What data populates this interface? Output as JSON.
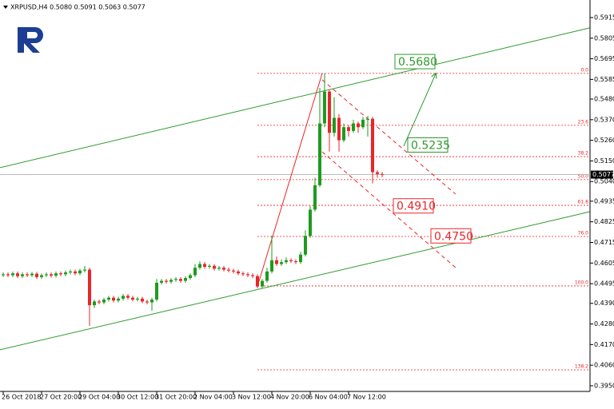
{
  "chart_data": {
    "type": "candlestick",
    "title": "XRPUSD,H4  0.5080 0.5091 0.5063 0.5077",
    "up_color": "#1e9b1e",
    "down_color": "#e8262a",
    "categories": [
      "26 Oct 2018",
      null,
      null,
      null,
      null,
      null,
      null,
      null,
      "27 Oct 20:00",
      null,
      null,
      null,
      null,
      null,
      null,
      null,
      "29 Oct 04:00",
      null,
      null,
      null,
      null,
      null,
      null,
      null,
      "30 Oct 12:00",
      null,
      null,
      null,
      null,
      null,
      null,
      null,
      "31 Oct 20:00",
      null,
      null,
      null,
      null,
      null,
      null,
      null,
      "2 Nov 04:00",
      null,
      null,
      null,
      null,
      null,
      null,
      null,
      "3 Nov 12:00",
      null,
      null,
      null,
      null,
      null,
      null,
      null,
      "4 Nov 20:00",
      null,
      null,
      null,
      null,
      null,
      null,
      null,
      "6 Nov 04:00",
      null,
      null,
      null,
      null,
      null,
      null,
      null,
      "7 Nov 12:00",
      null,
      null,
      null,
      null,
      null,
      null,
      null
    ],
    "open": [
      0.454,
      0.4545,
      0.454,
      0.455,
      0.4535,
      0.4545,
      0.454,
      0.4548,
      0.453,
      0.454,
      0.4545,
      0.4538,
      0.455,
      0.4545,
      0.4555,
      0.456,
      0.455,
      0.4565,
      0.457,
      0.438,
      0.44,
      0.4395,
      0.441,
      0.442,
      0.4405,
      0.4415,
      0.443,
      0.442,
      0.441,
      0.4415,
      0.44,
      0.4395,
      0.441,
      0.45,
      0.451,
      0.4505,
      0.4515,
      0.452,
      0.451,
      0.4525,
      0.454,
      0.458,
      0.46,
      0.4585,
      0.459,
      0.4575,
      0.458,
      0.457,
      0.4565,
      0.456,
      0.455,
      0.4545,
      0.454,
      0.4535,
      0.448,
      0.451,
      0.456,
      0.462,
      0.46,
      0.461,
      0.462,
      0.4615,
      0.461,
      0.465,
      0.475,
      0.489,
      0.502,
      0.535,
      0.552,
      0.53,
      0.538,
      0.526,
      0.533,
      0.531,
      0.535,
      0.533,
      0.537,
      0.5375,
      0.509,
      0.508
    ],
    "high": [
      0.4555,
      0.4555,
      0.456,
      0.456,
      0.4555,
      0.4555,
      0.4558,
      0.4558,
      0.455,
      0.4555,
      0.4555,
      0.456,
      0.456,
      0.4565,
      0.457,
      0.457,
      0.4575,
      0.459,
      0.458,
      0.441,
      0.441,
      0.442,
      0.443,
      0.443,
      0.4425,
      0.444,
      0.444,
      0.443,
      0.4425,
      0.4425,
      0.441,
      0.442,
      0.452,
      0.452,
      0.452,
      0.4525,
      0.453,
      0.453,
      0.4535,
      0.455,
      0.46,
      0.4615,
      0.461,
      0.46,
      0.46,
      0.459,
      0.459,
      0.458,
      0.4575,
      0.457,
      0.456,
      0.4555,
      0.455,
      0.4545,
      0.452,
      0.458,
      0.475,
      0.464,
      0.4625,
      0.4635,
      0.463,
      0.4625,
      0.4665,
      0.478,
      0.491,
      0.506,
      0.554,
      0.5617,
      0.553,
      0.549,
      0.54,
      0.535,
      0.534,
      0.537,
      0.536,
      0.5385,
      0.539,
      0.5385,
      0.51,
      0.5091
    ],
    "low": [
      0.453,
      0.453,
      0.453,
      0.4525,
      0.4525,
      0.453,
      0.453,
      0.452,
      0.452,
      0.453,
      0.4528,
      0.4528,
      0.4535,
      0.4535,
      0.4545,
      0.454,
      0.454,
      0.4555,
      0.427,
      0.4365,
      0.4385,
      0.4385,
      0.44,
      0.4395,
      0.4395,
      0.4405,
      0.441,
      0.44,
      0.44,
      0.439,
      0.4385,
      0.435,
      0.44,
      0.449,
      0.4495,
      0.4495,
      0.4505,
      0.45,
      0.45,
      0.4515,
      0.453,
      0.457,
      0.4575,
      0.4575,
      0.4565,
      0.4565,
      0.456,
      0.4555,
      0.455,
      0.454,
      0.4535,
      0.453,
      0.4525,
      0.447,
      0.447,
      0.45,
      0.455,
      0.459,
      0.459,
      0.46,
      0.4605,
      0.46,
      0.46,
      0.464,
      0.474,
      0.488,
      0.501,
      0.533,
      0.52,
      0.528,
      0.52,
      0.525,
      0.528,
      0.53,
      0.53,
      0.532,
      0.528,
      0.503,
      0.506,
      0.5063
    ],
    "close": [
      0.4545,
      0.454,
      0.455,
      0.4535,
      0.4545,
      0.454,
      0.4548,
      0.453,
      0.454,
      0.4545,
      0.4538,
      0.455,
      0.4545,
      0.4555,
      0.456,
      0.455,
      0.4565,
      0.457,
      0.438,
      0.44,
      0.4395,
      0.441,
      0.442,
      0.4405,
      0.4415,
      0.443,
      0.442,
      0.441,
      0.4415,
      0.44,
      0.4395,
      0.441,
      0.45,
      0.451,
      0.4505,
      0.4515,
      0.452,
      0.451,
      0.4525,
      0.454,
      0.458,
      0.46,
      0.4585,
      0.459,
      0.4575,
      0.458,
      0.457,
      0.4565,
      0.456,
      0.455,
      0.4545,
      0.454,
      0.4535,
      0.448,
      0.451,
      0.456,
      0.462,
      0.46,
      0.461,
      0.462,
      0.4615,
      0.461,
      0.465,
      0.475,
      0.489,
      0.502,
      0.535,
      0.552,
      0.53,
      0.538,
      0.526,
      0.533,
      0.531,
      0.535,
      0.533,
      0.537,
      0.5375,
      0.509,
      0.508,
      0.5077
    ],
    "ylim": [
      0.392,
      0.5966
    ],
    "yticks": [
      0.5915,
      0.5805,
      0.5695,
      0.5585,
      {
        "value": 0.548,
        "label": "0.5480"
      },
      {
        "value": 0.537,
        "label": "0.5370"
      },
      {
        "value": 0.526,
        "label": "0.5260"
      },
      {
        "value": 0.515,
        "label": "0.5150"
      },
      {
        "value": 0.504,
        "label": "0.5040"
      },
      0.4935,
      0.4825,
      0.4715,
      0.4605,
      0.4495,
      {
        "value": 0.439,
        "label": "0.4390"
      },
      {
        "value": 0.428,
        "label": "0.4280"
      },
      {
        "value": 0.417,
        "label": "0.4170"
      },
      {
        "value": 0.406,
        "label": "0.4060"
      },
      {
        "value": 0.395,
        "label": "0.3950"
      }
    ],
    "current_price": {
      "value": 0.5077,
      "label": "0.5077"
    },
    "fibonacci": {
      "color": "#e8262a",
      "from_bar": 53,
      "levels": [
        {
          "label": "0.0",
          "price": 0.5617
        },
        {
          "label": "23.6",
          "price": 0.534
        },
        {
          "label": "38.2",
          "price": 0.5173
        },
        {
          "label": "50.0",
          "price": 0.505
        },
        {
          "label": "61.8",
          "price": 0.4913
        },
        {
          "label": "76.0",
          "price": 0.4747
        },
        {
          "label": "100.0",
          "price": 0.4483
        },
        {
          "label": "138.2",
          "price": 0.4035
        }
      ]
    },
    "trendlines": [
      {
        "color": "#2e9a2e",
        "dash": false,
        "arrow": false,
        "x": [
          -0.7,
          122.3
        ],
        "y": [
          0.5114,
          0.586
        ]
      },
      {
        "color": "#2e9a2e",
        "dash": false,
        "arrow": false,
        "x": [
          -0.7,
          122.3
        ],
        "y": [
          0.4142,
          0.4879
        ]
      },
      {
        "color": "#e8262a",
        "dash": false,
        "arrow": false,
        "x": [
          53,
          66.5
        ],
        "y": [
          0.448,
          0.5617
        ]
      },
      {
        "color": "#e8262a",
        "dash": true,
        "arrow": false,
        "x": [
          66.5,
          94.3
        ],
        "y": [
          0.5583,
          0.4973
        ]
      },
      {
        "color": "#e8262a",
        "dash": true,
        "arrow": false,
        "x": [
          66.5,
          94.3
        ],
        "y": [
          0.5199,
          0.4581
        ]
      },
      {
        "color": "#2e9a2e",
        "dash": false,
        "arrow": true,
        "x": [
          83.5,
          90.2
        ],
        "y": [
          0.5229,
          0.5617
        ]
      }
    ],
    "annotations": [
      {
        "label": "0.5680",
        "value": 0.568,
        "color": "#2e9a2e"
      },
      {
        "label": "0.5235",
        "value": 0.5235,
        "color": "#2e9a2e"
      },
      {
        "label": "0.4910",
        "value": 0.491,
        "color": "#e8262a"
      },
      {
        "label": "0.4750",
        "value": 0.475,
        "color": "#e8262a"
      }
    ]
  }
}
